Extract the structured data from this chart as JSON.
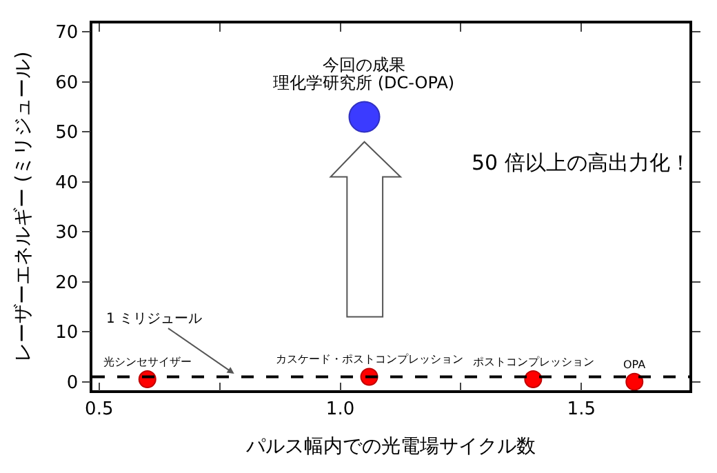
{
  "chart_data": {
    "type": "scatter",
    "xlabel": "パルス幅内での光電場サイクル数",
    "ylabel": "レーザーエネルギー (ミリジュール)",
    "xlim": [
      0.486,
      1.724
    ],
    "xticks": [
      0.5,
      {
        "value": 0.75,
        "label": null
      },
      {
        "value": 1.0,
        "label": "1.0"
      },
      {
        "value": 1.25,
        "label": null
      },
      1.5
    ],
    "ylim": [
      -1.7,
      71.7
    ],
    "yticks": [
      0,
      10,
      20,
      30,
      40,
      50,
      60,
      70
    ],
    "marker": "circle",
    "series": [
      {
        "color": "#ff0000",
        "x": [
          0.6,
          1.06,
          1.4,
          1.61
        ],
        "values": [
          0.5,
          1.0,
          0.5,
          0
        ]
      },
      {
        "color": "#3b3bff",
        "x": [
          1.05
        ],
        "values": [
          53
        ]
      }
    ],
    "ref_lines": [
      {
        "axis": "y",
        "value": 1,
        "label": "1 ミリジュール",
        "color": "#000000",
        "line_style": "dashed"
      }
    ],
    "annotations": [
      {
        "text": "光シンセサイザー",
        "x": 0.6,
        "y": 0.5
      },
      {
        "text": "カスケード・ポストコンプレッション",
        "x": 1.06,
        "y": 1.0
      },
      {
        "text": "ポストコンプレッション",
        "x": 1.4,
        "y": 0.5
      },
      {
        "text": "OPA",
        "x": 1.61,
        "y": 0
      },
      "今回の成果",
      {
        "text": "理化学研究所 (DC-OPA)",
        "x": 1.05,
        "y": 53
      },
      "50 倍以上の高出力化！"
    ]
  }
}
